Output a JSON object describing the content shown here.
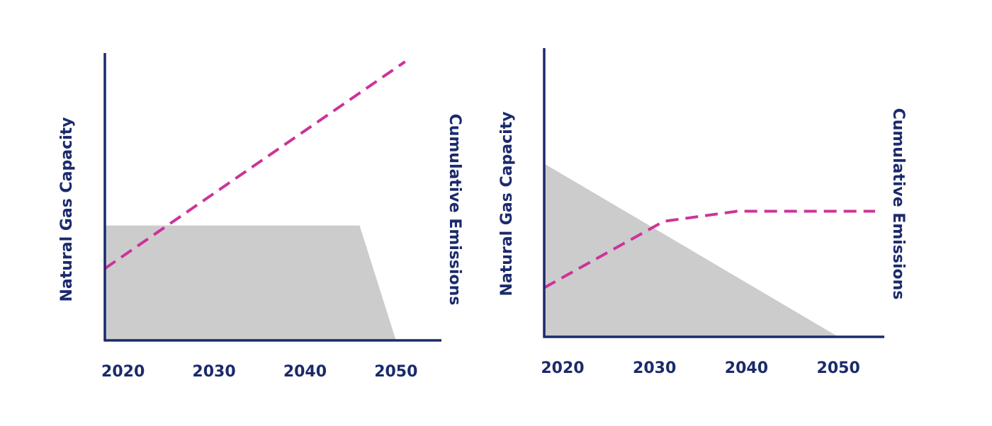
{
  "chart_data": [
    {
      "type": "area",
      "x_ticks": [
        "2020",
        "2030",
        "2040",
        "2050"
      ],
      "xlim": [
        2018,
        2055
      ],
      "ylabel_left": "Natural Gas Capacity",
      "ylabel_right": "Cumulative Emissions",
      "series": [
        {
          "kind": "area",
          "color": "#cccccc",
          "points": [
            [
              2018,
              40
            ],
            [
              2046,
              40
            ],
            [
              2050,
              0
            ]
          ]
        },
        {
          "kind": "line",
          "style": "dashed",
          "color": "#cc3399",
          "points": [
            [
              2018,
              25
            ],
            [
              2051,
              97
            ]
          ]
        }
      ]
    },
    {
      "type": "area",
      "x_ticks": [
        "2020",
        "2030",
        "2040",
        "2050"
      ],
      "xlim": [
        2018,
        2055
      ],
      "ylabel_left": "Natural Gas Capacity",
      "ylabel_right": "Cumulative Emissions",
      "series": [
        {
          "kind": "area",
          "color": "#cccccc",
          "points": [
            [
              2018,
              60
            ],
            [
              2050,
              0
            ]
          ]
        },
        {
          "kind": "line",
          "style": "dashed",
          "color": "#cc3399",
          "points": [
            [
              2018,
              17
            ],
            [
              2031,
              40
            ],
            [
              2039,
              43.5
            ],
            [
              2054,
              43.5
            ]
          ]
        }
      ]
    }
  ],
  "colors": {
    "axis": "#1b2a6b",
    "area": "#cccccc",
    "line": "#cc3399"
  }
}
